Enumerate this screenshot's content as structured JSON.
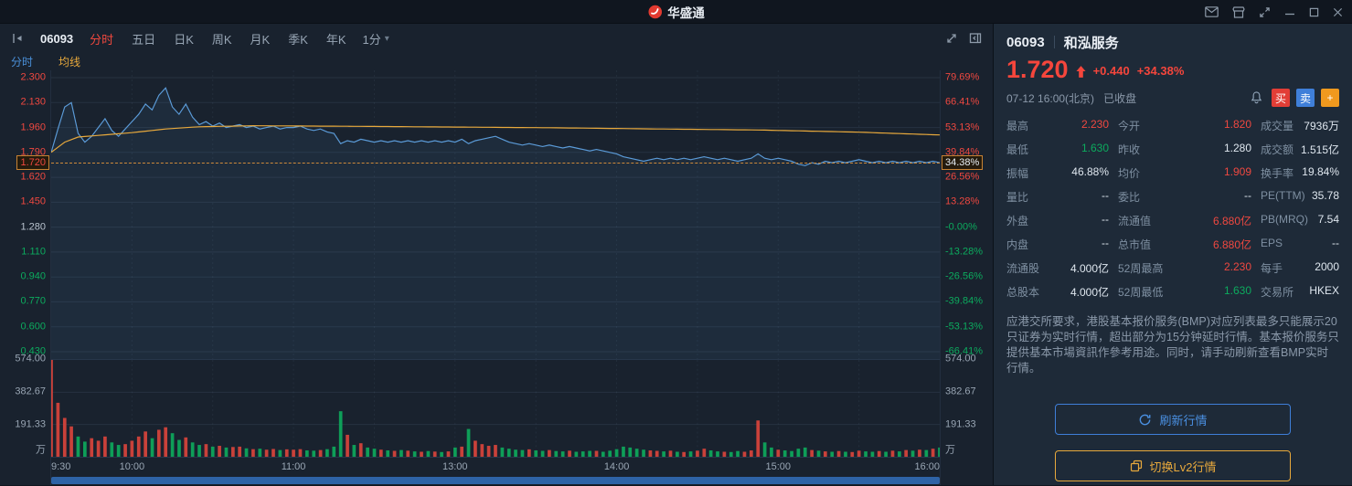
{
  "titlebar": {
    "app_name": "华盛通"
  },
  "toolbar": {
    "stock_code": "06093",
    "period": "1分",
    "caret": "▾",
    "tabs": [
      {
        "label": "分时",
        "name": "tab-minute",
        "active": true
      },
      {
        "label": "五日",
        "name": "tab-5day",
        "active": false
      },
      {
        "label": "日K",
        "name": "tab-day-k",
        "active": false
      },
      {
        "label": "周K",
        "name": "tab-week-k",
        "active": false
      },
      {
        "label": "月K",
        "name": "tab-month-k",
        "active": false
      },
      {
        "label": "季K",
        "name": "tab-quarter-k",
        "active": false
      },
      {
        "label": "年K",
        "name": "tab-year-k",
        "active": false
      }
    ]
  },
  "legend": {
    "minute": "分时",
    "ma": "均线"
  },
  "chart_data": {
    "type": "line",
    "title": "06093 和泓服务 分时走势",
    "prev_close": 1.28,
    "axis": {
      "vmin": 0.38,
      "vmax": 2.35
    },
    "total_minutes": 330,
    "v_gridlines": [
      30,
      60,
      90,
      120,
      150,
      180,
      210,
      240,
      270,
      300
    ],
    "y_ticks": [
      {
        "price": "2.300",
        "value": 2.3,
        "pct": "79.69%",
        "price_color": "red",
        "pct_color": "red"
      },
      {
        "price": "2.130",
        "value": 2.13,
        "pct": "66.41%",
        "price_color": "red",
        "pct_color": "red"
      },
      {
        "price": "1.960",
        "value": 1.96,
        "pct": "53.13%",
        "price_color": "red",
        "pct_color": "red"
      },
      {
        "price": "1.790",
        "value": 1.79,
        "pct": "39.84%",
        "price_color": "red",
        "pct_color": "red"
      },
      {
        "price": "1.620",
        "value": 1.62,
        "pct": "26.56%",
        "price_color": "red",
        "pct_color": "red"
      },
      {
        "price": "1.450",
        "value": 1.45,
        "pct": "13.28%",
        "price_color": "red",
        "pct_color": "red"
      },
      {
        "price": "1.280",
        "value": 1.28,
        "pct": "-0.00%",
        "price_color": "neutral",
        "pct_color": "green"
      },
      {
        "price": "1.110",
        "value": 1.11,
        "pct": "-13.28%",
        "price_color": "green",
        "pct_color": "green"
      },
      {
        "price": "0.940",
        "value": 0.94,
        "pct": "-26.56%",
        "price_color": "green",
        "pct_color": "green"
      },
      {
        "price": "0.770",
        "value": 0.77,
        "pct": "-39.84%",
        "price_color": "green",
        "pct_color": "green"
      },
      {
        "price": "0.600",
        "value": 0.6,
        "pct": "-53.13%",
        "price_color": "green",
        "pct_color": "green"
      },
      {
        "price": "0.430",
        "value": 0.43,
        "pct": "-66.41%",
        "price_color": "green",
        "pct_color": "green"
      }
    ],
    "current": {
      "value": 1.72,
      "price_label": "1.720",
      "pct_label": "34.38%"
    },
    "x_labels": [
      {
        "label": "9:30",
        "pos": 0
      },
      {
        "label": "10:00",
        "pos": 9.09
      },
      {
        "label": "11:00",
        "pos": 27.27
      },
      {
        "label": "13:00",
        "pos": 45.45
      },
      {
        "label": "14:00",
        "pos": 63.64
      },
      {
        "label": "15:00",
        "pos": 81.82
      },
      {
        "label": "16:00",
        "pos": 100
      }
    ],
    "vol_ticks": [
      {
        "label": "574.00",
        "pos": 0
      },
      {
        "label": "382.67",
        "pos": 33.33
      },
      {
        "label": "191.33",
        "pos": 66.67
      }
    ],
    "vol_unit": "万",
    "vol_max": 574,
    "prices": [
      1.79,
      1.95,
      2.1,
      2.13,
      1.92,
      1.86,
      1.9,
      1.96,
      2.02,
      1.94,
      1.9,
      1.95,
      2.0,
      2.05,
      2.12,
      2.08,
      2.18,
      2.23,
      2.1,
      2.05,
      2.12,
      2.03,
      1.98,
      2.0,
      1.97,
      1.99,
      1.96,
      1.97,
      1.98,
      1.96,
      1.97,
      1.95,
      1.96,
      1.97,
      1.95,
      1.96,
      1.96,
      1.97,
      1.95,
      1.94,
      1.95,
      1.93,
      1.92,
      1.85,
      1.87,
      1.86,
      1.88,
      1.87,
      1.86,
      1.87,
      1.86,
      1.87,
      1.86,
      1.87,
      1.86,
      1.87,
      1.86,
      1.87,
      1.86,
      1.87,
      1.86,
      1.88,
      1.85,
      1.87,
      1.88,
      1.89,
      1.9,
      1.88,
      1.86,
      1.85,
      1.84,
      1.85,
      1.84,
      1.83,
      1.84,
      1.83,
      1.82,
      1.83,
      1.82,
      1.81,
      1.8,
      1.81,
      1.8,
      1.79,
      1.78,
      1.76,
      1.75,
      1.74,
      1.73,
      1.74,
      1.75,
      1.74,
      1.75,
      1.74,
      1.75,
      1.74,
      1.75,
      1.76,
      1.75,
      1.74,
      1.75,
      1.74,
      1.73,
      1.74,
      1.75,
      1.78,
      1.75,
      1.74,
      1.75,
      1.74,
      1.73,
      1.71,
      1.7,
      1.72,
      1.71,
      1.73,
      1.72,
      1.73,
      1.72,
      1.73,
      1.74,
      1.73,
      1.72,
      1.73,
      1.72,
      1.73,
      1.72,
      1.73,
      1.72,
      1.73,
      1.72,
      1.73,
      1.72
    ],
    "avg_points": [
      [
        0,
        1.79
      ],
      [
        2,
        1.86
      ],
      [
        4,
        1.895
      ],
      [
        8,
        1.91
      ],
      [
        12,
        1.925
      ],
      [
        17,
        1.95
      ],
      [
        22,
        1.965
      ],
      [
        30,
        1.972
      ],
      [
        45,
        1.968
      ],
      [
        60,
        1.963
      ],
      [
        75,
        1.958
      ],
      [
        90,
        1.95
      ],
      [
        105,
        1.943
      ],
      [
        120,
        1.928
      ],
      [
        132,
        1.909
      ]
    ],
    "volumes": [
      574,
      320,
      230,
      180,
      120,
      90,
      110,
      95,
      120,
      85,
      70,
      75,
      95,
      120,
      150,
      110,
      160,
      175,
      140,
      100,
      115,
      85,
      70,
      75,
      60,
      65,
      55,
      58,
      60,
      50,
      45,
      48,
      42,
      46,
      40,
      44,
      42,
      45,
      38,
      36,
      40,
      45,
      60,
      270,
      130,
      70,
      80,
      55,
      48,
      42,
      38,
      35,
      40,
      36,
      32,
      30,
      34,
      31,
      28,
      32,
      55,
      60,
      165,
      95,
      75,
      65,
      70,
      55,
      48,
      42,
      40,
      44,
      38,
      35,
      40,
      34,
      32,
      36,
      30,
      32,
      35,
      35,
      30,
      36,
      45,
      60,
      55,
      48,
      42,
      38,
      35,
      32,
      36,
      30,
      28,
      32,
      36,
      48,
      38,
      32,
      30,
      28,
      34,
      30,
      38,
      215,
      85,
      55,
      42,
      38,
      34,
      48,
      55,
      40,
      36,
      32,
      30,
      34,
      30,
      28,
      36,
      32,
      30,
      34,
      30,
      36,
      32,
      40,
      36,
      42,
      40,
      48,
      55
    ]
  },
  "quote": {
    "code": "06093",
    "name": "和泓服务",
    "price": "1.720",
    "change": "+0.440",
    "change_pct": "+34.38%",
    "time": "07-12 16:00(北京)",
    "status": "已收盘",
    "buy": "买",
    "sell": "卖",
    "add": "+",
    "stats": [
      {
        "key": "high",
        "label": "最高",
        "value": "2.230",
        "color": "red"
      },
      {
        "key": "open",
        "label": "今开",
        "value": "1.820",
        "color": "red"
      },
      {
        "key": "volume",
        "label": "成交量",
        "value": "7936万",
        "color": "white"
      },
      {
        "key": "low",
        "label": "最低",
        "value": "1.630",
        "color": "green"
      },
      {
        "key": "prev-close",
        "label": "昨收",
        "value": "1.280",
        "color": "white"
      },
      {
        "key": "turnover",
        "label": "成交额",
        "value": "1.515亿",
        "color": "white"
      },
      {
        "key": "amplitude",
        "label": "振幅",
        "value": "46.88%",
        "color": "white"
      },
      {
        "key": "avg-price",
        "label": "均价",
        "value": "1.909",
        "color": "red"
      },
      {
        "key": "turnover-rate",
        "label": "换手率",
        "value": "19.84%",
        "color": "white"
      },
      {
        "key": "volume-ratio",
        "label": "量比",
        "value": "--",
        "color": "white"
      },
      {
        "key": "bid-ratio",
        "label": "委比",
        "value": "--",
        "color": "white"
      },
      {
        "key": "pe-ttm",
        "label": "PE(TTM)",
        "value": "35.78",
        "color": "white"
      },
      {
        "key": "outer-vol",
        "label": "外盘",
        "value": "--",
        "color": "white"
      },
      {
        "key": "float-cap",
        "label": "流通值",
        "value": "6.880亿",
        "color": "red"
      },
      {
        "key": "pb-mrq",
        "label": "PB(MRQ)",
        "value": "7.54",
        "color": "white"
      },
      {
        "key": "inner-vol",
        "label": "内盘",
        "value": "--",
        "color": "white"
      },
      {
        "key": "market-cap",
        "label": "总市值",
        "value": "6.880亿",
        "color": "red"
      },
      {
        "key": "eps",
        "label": "EPS",
        "value": "--",
        "color": "white"
      },
      {
        "key": "float-shares",
        "label": "流通股",
        "value": "4.000亿",
        "color": "white"
      },
      {
        "key": "high-52w",
        "label": "52周最高",
        "value": "2.230",
        "color": "red"
      },
      {
        "key": "lot-size",
        "label": "每手",
        "value": "2000",
        "color": "white"
      },
      {
        "key": "total-shares",
        "label": "总股本",
        "value": "4.000亿",
        "color": "white"
      },
      {
        "key": "low-52w",
        "label": "52周最低",
        "value": "1.630",
        "color": "green"
      },
      {
        "key": "exchange",
        "label": "交易所",
        "value": "HKEX",
        "color": "white"
      }
    ],
    "notice": "应港交所要求，港股基本报价服务(BMP)对应列表最多只能展示20只证券为实时行情，超出部分为15分钟延时行情。基本报价服务只提供基本市場資訊作參考用途。同时，请手动刷新查看BMP实时行情。",
    "refresh_button": "刷新行情",
    "lv2_button": "切换Lv2行情"
  },
  "colors": {
    "red": "#ef4840",
    "green": "#0cab5e",
    "blue": "#3f86e0",
    "orange": "#e8a93c",
    "vol_up": "#c9413a",
    "vol_down": "#0e9e58",
    "line_blue": "#5b9bd8",
    "line_avg": "#e8a93c"
  }
}
